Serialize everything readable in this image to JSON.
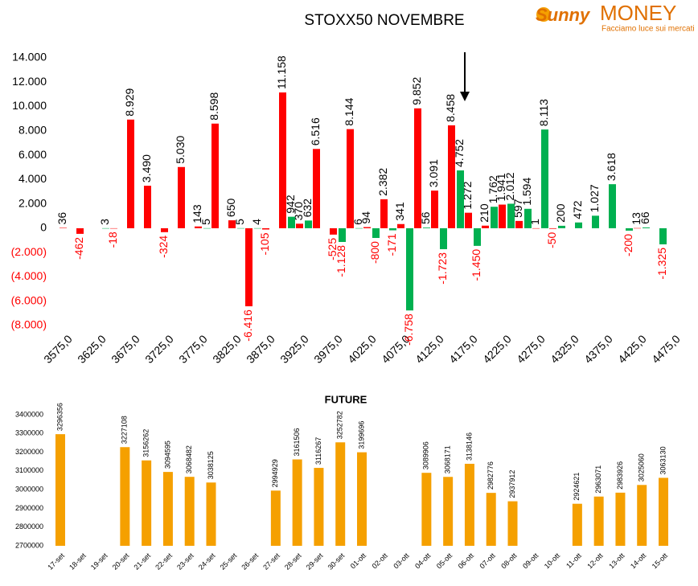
{
  "logo": {
    "brand_1": "Sunny",
    "brand_2": "MONEY",
    "tagline": "Facciamo luce sui mercati"
  },
  "chart_data": [
    {
      "type": "bar",
      "title": "STOXX50 NOVEMBRE",
      "categories": [
        "3575,0",
        null,
        "3625,0",
        null,
        "3675,0",
        null,
        "3725,0",
        null,
        "3775,0",
        null,
        "3825,0",
        null,
        "3875,0",
        null,
        "3925,0",
        null,
        "3975,0",
        null,
        "4025,0",
        null,
        "4075,0",
        null,
        "4125,0",
        null,
        "4175,0",
        null,
        "4225,0",
        null,
        "4275,0",
        null,
        "4325,0",
        null,
        "4375,0",
        null,
        "4425,0",
        null,
        "4475,0"
      ],
      "series": [
        {
          "color": "#ff0000",
          "values": [
            36,
            -462,
            null,
            -18,
            8929,
            3490,
            -324,
            5030,
            143,
            8598,
            650,
            -6416,
            -105,
            11158,
            370,
            6516,
            -525,
            8144,
            94,
            2382,
            341,
            9852,
            3091,
            8458,
            1272,
            210,
            1941,
            597,
            1,
            -50,
            null,
            null,
            null,
            null,
            13,
            null,
            null
          ],
          "value_labels": [
            "36",
            "-462",
            null,
            "-18",
            "8.929",
            "3.490",
            "-324",
            "5.030",
            "143",
            "8.598",
            "650",
            "-6.416",
            "-105",
            "11.158",
            "370",
            "6.516",
            "-525",
            "8.144",
            "94",
            "2.382",
            "341",
            "9.852",
            "3.091",
            "8.458",
            "1.272",
            "210",
            "1.941",
            "597",
            "1",
            "-50",
            null,
            null,
            null,
            null,
            "13",
            null,
            null
          ]
        },
        {
          "color": "#00b050",
          "values": [
            null,
            null,
            3,
            null,
            null,
            null,
            null,
            null,
            5,
            null,
            5,
            4,
            null,
            942,
            632,
            null,
            -1128,
            6,
            -800,
            -171,
            -6758,
            56,
            -1723,
            4752,
            -1450,
            1762,
            2012,
            1594,
            8113,
            200,
            472,
            1027,
            3618,
            -200,
            66,
            -1325,
            null
          ],
          "value_labels": [
            null,
            null,
            "3",
            null,
            null,
            null,
            null,
            null,
            "5",
            null,
            "5",
            "4",
            null,
            "942",
            "632",
            null,
            "-1.128",
            "6",
            "-800",
            "-171",
            "-6.758",
            "56",
            "-1.723",
            "4.752",
            "-1.450",
            "1.762",
            "2.012",
            "1.594",
            "8.113",
            "200",
            "472",
            "1.027",
            "3.618",
            "-200",
            "66",
            "-1.325",
            null
          ]
        }
      ],
      "ylim": [
        -8000,
        14000
      ],
      "yticks": [
        {
          "value": 14000,
          "label": "14.000"
        },
        {
          "value": 12000,
          "label": "12.000"
        },
        {
          "value": 10000,
          "label": "10.000"
        },
        {
          "value": 8000,
          "label": "8.000"
        },
        {
          "value": 6000,
          "label": "6.000"
        },
        {
          "value": 4000,
          "label": "4.000"
        },
        {
          "value": 2000,
          "label": "2.000"
        },
        0,
        {
          "value": -2000,
          "label": "(2.000)"
        },
        {
          "value": -4000,
          "label": "(4.000)"
        },
        {
          "value": -6000,
          "label": "(6.000)"
        },
        {
          "value": -8000,
          "label": "(8.000)"
        }
      ],
      "grid": false
    },
    {
      "type": "bar",
      "title": "FUTURE",
      "categories": [
        "17-set",
        "18-set",
        "19-set",
        "20-set",
        "21-set",
        "22-set",
        "23-set",
        "24-set",
        "25-set",
        "26-set",
        "27-set",
        "28-set",
        "29-set",
        "30-set",
        "01-ott",
        "02-ott",
        "03-ott",
        "04-ott",
        "05-ott",
        "06-ott",
        "07-ott",
        "08-ott",
        "09-ott",
        "10-ott",
        "11-ott",
        "12-ott",
        "13-ott",
        "14-ott",
        "15-ott"
      ],
      "series": [
        {
          "color": "#f5a000",
          "values": [
            3296356,
            null,
            null,
            3227108,
            3156262,
            3094595,
            3068482,
            3038125,
            null,
            null,
            2994929,
            3161506,
            3116267,
            3252782,
            3199696,
            null,
            null,
            3089906,
            3068171,
            3138146,
            2982776,
            2937912,
            null,
            null,
            2924621,
            2963071,
            2983926,
            3025060,
            3063130
          ]
        }
      ],
      "ylim": [
        2700000,
        3400000
      ],
      "yticks": [
        3400000,
        3300000,
        3200000,
        3100000,
        3000000,
        2900000,
        2800000,
        2700000
      ],
      "grid": false
    }
  ]
}
